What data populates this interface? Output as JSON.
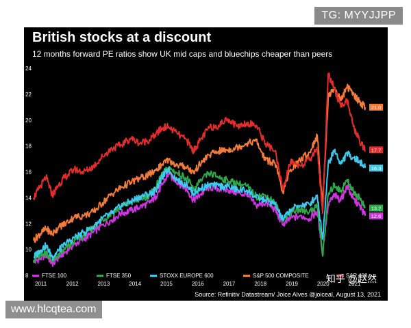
{
  "top_tag": "TG: MYYJJPP",
  "bottom_tag": "www.hlcqtea.com",
  "watermark": "知乎 @赵然",
  "source": "Source: Refinitiv Datastream/ Joice Alves @joiceal, August 13,  2021",
  "chart_data": {
    "type": "line",
    "title": "British stocks at a discount",
    "subtitle": "12 months forward PE ratios show UK mid caps and bluechips cheaper than peers",
    "xlabel": "",
    "ylabel": "",
    "xlim": [
      2011,
      2021.62
    ],
    "ylim": [
      8,
      24
    ],
    "x_ticks": [
      "2011",
      "2012",
      "2013",
      "2014",
      "2015",
      "2016",
      "2017",
      "2018",
      "2019",
      "2020",
      "2021"
    ],
    "y_ticks": [
      "8",
      "10",
      "12",
      "14",
      "16",
      "18",
      "20",
      "22",
      "24"
    ],
    "grid": false,
    "legend": "bottom",
    "series": [
      {
        "name": "FTSE 100",
        "color": "#d033e0",
        "end_label": "12.6",
        "points": [
          [
            2011.0,
            9.0
          ],
          [
            2011.2,
            9.3
          ],
          [
            2011.4,
            9.6
          ],
          [
            2011.6,
            8.9
          ],
          [
            2011.8,
            9.4
          ],
          [
            2012.0,
            9.8
          ],
          [
            2012.3,
            10.4
          ],
          [
            2012.6,
            10.8
          ],
          [
            2012.9,
            11.3
          ],
          [
            2013.2,
            11.9
          ],
          [
            2013.5,
            12.3
          ],
          [
            2013.8,
            12.8
          ],
          [
            2014.1,
            13.0
          ],
          [
            2014.4,
            13.3
          ],
          [
            2014.7,
            13.6
          ],
          [
            2014.9,
            14.1
          ],
          [
            2015.1,
            15.0
          ],
          [
            2015.3,
            15.8
          ],
          [
            2015.6,
            15.2
          ],
          [
            2015.9,
            14.6
          ],
          [
            2016.1,
            13.8
          ],
          [
            2016.3,
            14.2
          ],
          [
            2016.6,
            14.8
          ],
          [
            2016.9,
            14.7
          ],
          [
            2017.2,
            14.6
          ],
          [
            2017.5,
            14.4
          ],
          [
            2017.8,
            14.2
          ],
          [
            2018.1,
            13.4
          ],
          [
            2018.4,
            13.6
          ],
          [
            2018.7,
            13.1
          ],
          [
            2018.95,
            11.9
          ],
          [
            2019.2,
            12.4
          ],
          [
            2019.5,
            12.6
          ],
          [
            2019.8,
            12.4
          ],
          [
            2020.05,
            12.9
          ],
          [
            2020.22,
            9.8
          ],
          [
            2020.4,
            13.5
          ],
          [
            2020.6,
            14.2
          ],
          [
            2020.8,
            13.8
          ],
          [
            2021.0,
            14.9
          ],
          [
            2021.2,
            13.9
          ],
          [
            2021.4,
            13.4
          ],
          [
            2021.58,
            12.6
          ]
        ]
      },
      {
        "name": "FTSE 350",
        "color": "#2fa84a",
        "end_label": "13.2",
        "points": [
          [
            2011.0,
            9.2
          ],
          [
            2011.2,
            9.5
          ],
          [
            2011.4,
            9.8
          ],
          [
            2011.6,
            9.1
          ],
          [
            2011.8,
            9.6
          ],
          [
            2012.0,
            10.0
          ],
          [
            2012.3,
            10.7
          ],
          [
            2012.6,
            11.1
          ],
          [
            2012.9,
            11.7
          ],
          [
            2013.2,
            12.3
          ],
          [
            2013.5,
            12.8
          ],
          [
            2013.8,
            13.3
          ],
          [
            2014.1,
            13.6
          ],
          [
            2014.4,
            13.9
          ],
          [
            2014.7,
            14.2
          ],
          [
            2014.9,
            14.8
          ],
          [
            2015.1,
            15.8
          ],
          [
            2015.3,
            16.3
          ],
          [
            2015.6,
            15.9
          ],
          [
            2015.9,
            15.5
          ],
          [
            2016.1,
            14.6
          ],
          [
            2016.3,
            15.2
          ],
          [
            2016.6,
            15.9
          ],
          [
            2016.9,
            15.6
          ],
          [
            2017.2,
            15.3
          ],
          [
            2017.5,
            15.1
          ],
          [
            2017.8,
            14.9
          ],
          [
            2018.1,
            14.1
          ],
          [
            2018.4,
            14.2
          ],
          [
            2018.7,
            13.6
          ],
          [
            2018.95,
            12.3
          ],
          [
            2019.2,
            12.9
          ],
          [
            2019.5,
            13.1
          ],
          [
            2019.8,
            12.9
          ],
          [
            2020.05,
            13.4
          ],
          [
            2020.22,
            9.5
          ],
          [
            2020.4,
            14.2
          ],
          [
            2020.6,
            15.0
          ],
          [
            2020.8,
            14.5
          ],
          [
            2021.0,
            15.4
          ],
          [
            2021.2,
            14.5
          ],
          [
            2021.4,
            14.0
          ],
          [
            2021.58,
            13.2
          ]
        ]
      },
      {
        "name": "STOXX EUROPE 600",
        "color": "#3ec9ef",
        "end_label": "16.3",
        "points": [
          [
            2011.0,
            9.4
          ],
          [
            2011.2,
            9.9
          ],
          [
            2011.4,
            10.3
          ],
          [
            2011.6,
            9.4
          ],
          [
            2011.8,
            9.9
          ],
          [
            2012.0,
            10.4
          ],
          [
            2012.3,
            10.9
          ],
          [
            2012.6,
            11.3
          ],
          [
            2012.9,
            11.8
          ],
          [
            2013.2,
            12.4
          ],
          [
            2013.5,
            12.8
          ],
          [
            2013.8,
            13.4
          ],
          [
            2014.1,
            13.7
          ],
          [
            2014.4,
            14.1
          ],
          [
            2014.7,
            14.3
          ],
          [
            2014.9,
            14.6
          ],
          [
            2015.1,
            15.6
          ],
          [
            2015.3,
            16.2
          ],
          [
            2015.6,
            15.3
          ],
          [
            2015.9,
            15.0
          ],
          [
            2016.1,
            14.3
          ],
          [
            2016.3,
            14.7
          ],
          [
            2016.6,
            15.0
          ],
          [
            2016.9,
            14.9
          ],
          [
            2017.2,
            14.9
          ],
          [
            2017.5,
            14.6
          ],
          [
            2017.8,
            14.6
          ],
          [
            2018.1,
            14.0
          ],
          [
            2018.4,
            13.8
          ],
          [
            2018.7,
            13.5
          ],
          [
            2018.95,
            12.3
          ],
          [
            2019.2,
            13.1
          ],
          [
            2019.5,
            13.4
          ],
          [
            2019.8,
            13.5
          ],
          [
            2020.05,
            14.2
          ],
          [
            2020.22,
            10.8
          ],
          [
            2020.4,
            16.6
          ],
          [
            2020.6,
            17.7
          ],
          [
            2020.8,
            16.6
          ],
          [
            2021.0,
            17.4
          ],
          [
            2021.2,
            17.1
          ],
          [
            2021.4,
            16.8
          ],
          [
            2021.58,
            16.3
          ]
        ]
      },
      {
        "name": "S&P 500 COMPOSITE",
        "color": "#f47c3a",
        "end_label": "21.0",
        "points": [
          [
            2011.0,
            10.7
          ],
          [
            2011.2,
            11.2
          ],
          [
            2011.4,
            11.6
          ],
          [
            2011.6,
            11.2
          ],
          [
            2011.8,
            11.7
          ],
          [
            2012.0,
            12.0
          ],
          [
            2012.3,
            12.5
          ],
          [
            2012.6,
            12.6
          ],
          [
            2012.9,
            12.9
          ],
          [
            2013.2,
            13.6
          ],
          [
            2013.5,
            14.3
          ],
          [
            2013.8,
            14.8
          ],
          [
            2014.1,
            15.2
          ],
          [
            2014.4,
            15.5
          ],
          [
            2014.7,
            15.8
          ],
          [
            2014.9,
            16.1
          ],
          [
            2015.1,
            16.6
          ],
          [
            2015.3,
            16.9
          ],
          [
            2015.6,
            16.5
          ],
          [
            2015.9,
            16.4
          ],
          [
            2016.1,
            15.9
          ],
          [
            2016.3,
            16.6
          ],
          [
            2016.6,
            17.3
          ],
          [
            2016.9,
            17.6
          ],
          [
            2017.2,
            17.7
          ],
          [
            2017.5,
            17.9
          ],
          [
            2017.8,
            18.2
          ],
          [
            2018.1,
            18.4
          ],
          [
            2018.4,
            16.9
          ],
          [
            2018.7,
            16.7
          ],
          [
            2018.95,
            14.4
          ],
          [
            2019.2,
            16.2
          ],
          [
            2019.5,
            16.9
          ],
          [
            2019.8,
            17.5
          ],
          [
            2020.05,
            18.8
          ],
          [
            2020.22,
            13.4
          ],
          [
            2020.4,
            21.8
          ],
          [
            2020.6,
            22.5
          ],
          [
            2020.8,
            21.5
          ],
          [
            2021.0,
            22.6
          ],
          [
            2021.2,
            22.0
          ],
          [
            2021.4,
            21.4
          ],
          [
            2021.58,
            21.0
          ]
        ]
      },
      {
        "name": "S&P 400",
        "color": "#e32d2d",
        "end_label": "17.7",
        "points": [
          [
            2011.0,
            14.0
          ],
          [
            2011.2,
            14.8
          ],
          [
            2011.4,
            15.6
          ],
          [
            2011.6,
            14.2
          ],
          [
            2011.8,
            15.0
          ],
          [
            2012.0,
            15.6
          ],
          [
            2012.3,
            16.2
          ],
          [
            2012.6,
            16.0
          ],
          [
            2012.9,
            16.4
          ],
          [
            2013.2,
            17.2
          ],
          [
            2013.5,
            17.8
          ],
          [
            2013.8,
            18.1
          ],
          [
            2014.1,
            18.6
          ],
          [
            2014.4,
            18.2
          ],
          [
            2014.7,
            18.5
          ],
          [
            2014.9,
            18.9
          ],
          [
            2015.1,
            19.4
          ],
          [
            2015.3,
            19.5
          ],
          [
            2015.6,
            18.9
          ],
          [
            2015.9,
            18.4
          ],
          [
            2016.1,
            17.6
          ],
          [
            2016.3,
            18.4
          ],
          [
            2016.6,
            19.4
          ],
          [
            2016.9,
            19.6
          ],
          [
            2017.2,
            20.1
          ],
          [
            2017.5,
            19.5
          ],
          [
            2017.8,
            19.8
          ],
          [
            2018.1,
            19.6
          ],
          [
            2018.4,
            18.2
          ],
          [
            2018.7,
            17.6
          ],
          [
            2018.95,
            14.6
          ],
          [
            2019.2,
            16.8
          ],
          [
            2019.5,
            16.5
          ],
          [
            2019.8,
            16.9
          ],
          [
            2020.05,
            17.9
          ],
          [
            2020.22,
            12.8
          ],
          [
            2020.4,
            23.6
          ],
          [
            2020.6,
            22.4
          ],
          [
            2020.8,
            21.0
          ],
          [
            2021.0,
            21.6
          ],
          [
            2021.2,
            19.5
          ],
          [
            2021.4,
            18.4
          ],
          [
            2021.58,
            17.7
          ]
        ]
      }
    ]
  }
}
